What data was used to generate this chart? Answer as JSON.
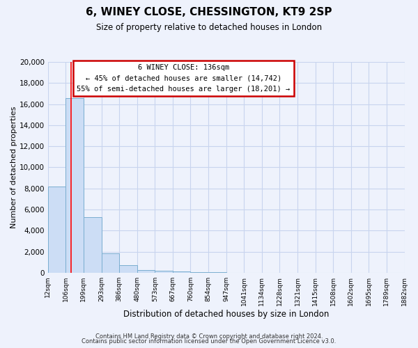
{
  "title": "6, WINEY CLOSE, CHESSINGTON, KT9 2SP",
  "subtitle": "Size of property relative to detached houses in London",
  "xlabel": "Distribution of detached houses by size in London",
  "ylabel": "Number of detached properties",
  "bin_labels": [
    "12sqm",
    "106sqm",
    "199sqm",
    "293sqm",
    "386sqm",
    "480sqm",
    "573sqm",
    "667sqm",
    "760sqm",
    "854sqm",
    "947sqm",
    "1041sqm",
    "1134sqm",
    "1228sqm",
    "1321sqm",
    "1415sqm",
    "1508sqm",
    "1602sqm",
    "1695sqm",
    "1789sqm",
    "1882sqm"
  ],
  "bar_heights": [
    8200,
    16600,
    5300,
    1850,
    750,
    280,
    200,
    100,
    80,
    50,
    0,
    0,
    0,
    0,
    0,
    0,
    0,
    0,
    0,
    0
  ],
  "bar_color": "#ccddf5",
  "bar_edge_color": "#7aaed0",
  "red_line_x": 1.3,
  "property_size": "136sqm",
  "pct_smaller": 45,
  "n_smaller": 14742,
  "pct_larger_semi": 55,
  "n_larger_semi": 18201,
  "ylim": [
    0,
    20000
  ],
  "yticks": [
    0,
    2000,
    4000,
    6000,
    8000,
    10000,
    12000,
    14000,
    16000,
    18000,
    20000
  ],
  "annotation_box_color": "#ffffff",
  "annotation_box_edge_color": "#cc0000",
  "footer_line1": "Contains HM Land Registry data © Crown copyright and database right 2024.",
  "footer_line2": "Contains public sector information licensed under the Open Government Licence v3.0.",
  "background_color": "#eef2fc",
  "grid_color": "#c8d4ee"
}
